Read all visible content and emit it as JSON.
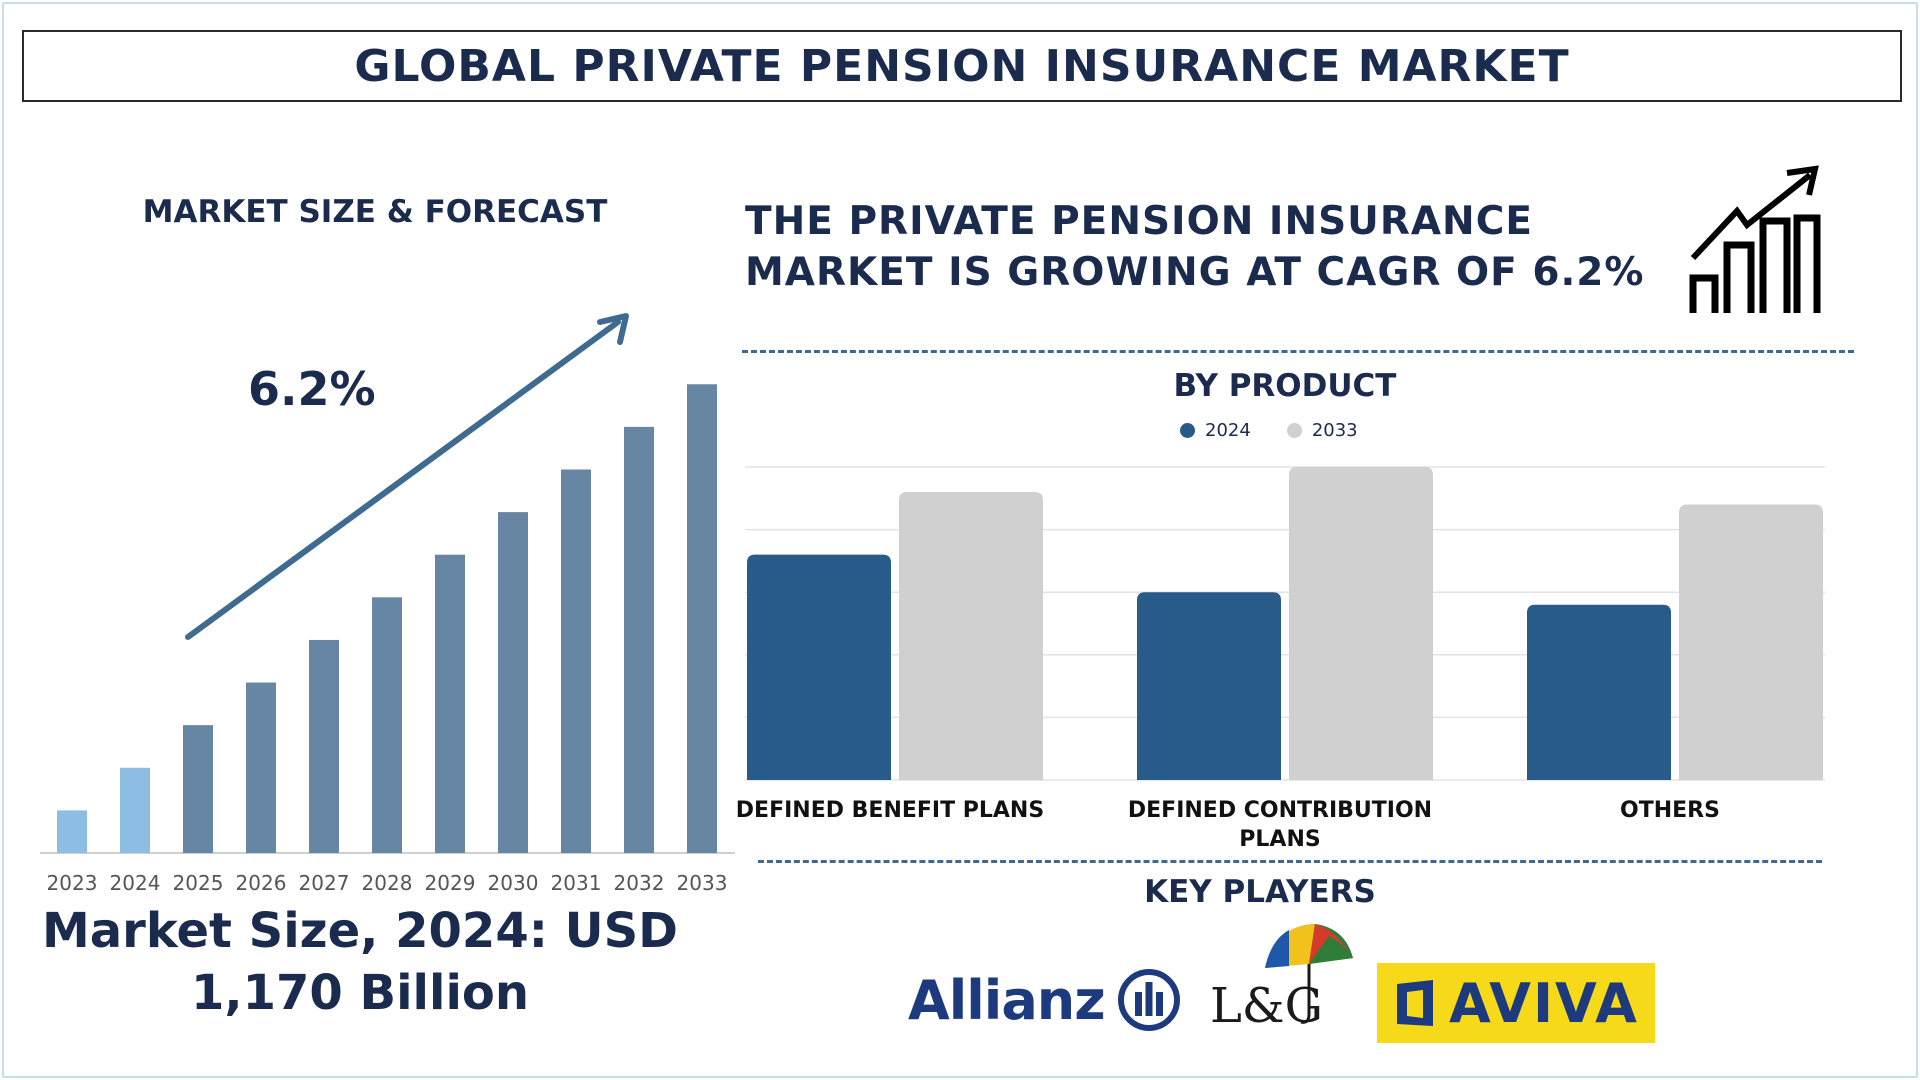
{
  "title": "GLOBAL PRIVATE PENSION INSURANCE MARKET",
  "left_panel": {
    "subtitle": "MARKET SIZE & FORECAST",
    "cagr_label": "6.2%",
    "market_size_line1": "Market Size, 2024: USD",
    "market_size_line2": "1,170 Billion"
  },
  "headline": {
    "line1": "THE PRIVATE PENSION INSURANCE",
    "line2": "MARKET IS GROWING AT CAGR OF 6.2%"
  },
  "by_product_title": "BY PRODUCT",
  "key_players_title": "KEY PLAYERS",
  "key_players": {
    "allianz": "Allianz",
    "lg": "L&G",
    "aviva": "AVIVA"
  },
  "colors": {
    "navy": "#1b2b4d",
    "bar_forecast": "#6786a3",
    "bar_highlight": "#8dbde3",
    "series_2024": "#285b89",
    "series_2033": "#d0d0d0",
    "arrow": "#3e6b8f"
  },
  "chart_data": [
    {
      "type": "bar",
      "title": "MARKET SIZE & FORECAST",
      "categories": [
        "2023",
        "2024",
        "2025",
        "2026",
        "2027",
        "2028",
        "2029",
        "2030",
        "2031",
        "2032",
        "2033"
      ],
      "values": [
        1,
        2,
        3,
        4,
        5,
        6,
        7,
        8,
        9,
        10,
        11
      ],
      "highlighted": [
        "2023",
        "2024"
      ],
      "annotation": "6.2%",
      "ylim": [
        0,
        11.1
      ],
      "grid": false,
      "legend": "none"
    },
    {
      "type": "bar",
      "title": "BY PRODUCT",
      "categories": [
        "DEFINED BENEFIT PLANS",
        "DEFINED CONTRIBUTION PLANS",
        "OTHERS"
      ],
      "series": [
        {
          "name": "2024",
          "values": [
            72,
            60,
            56
          ]
        },
        {
          "name": "2033",
          "values": [
            92,
            100,
            88
          ]
        }
      ],
      "ylim": [
        0,
        100
      ],
      "grid": true,
      "legend": "top-center"
    }
  ]
}
